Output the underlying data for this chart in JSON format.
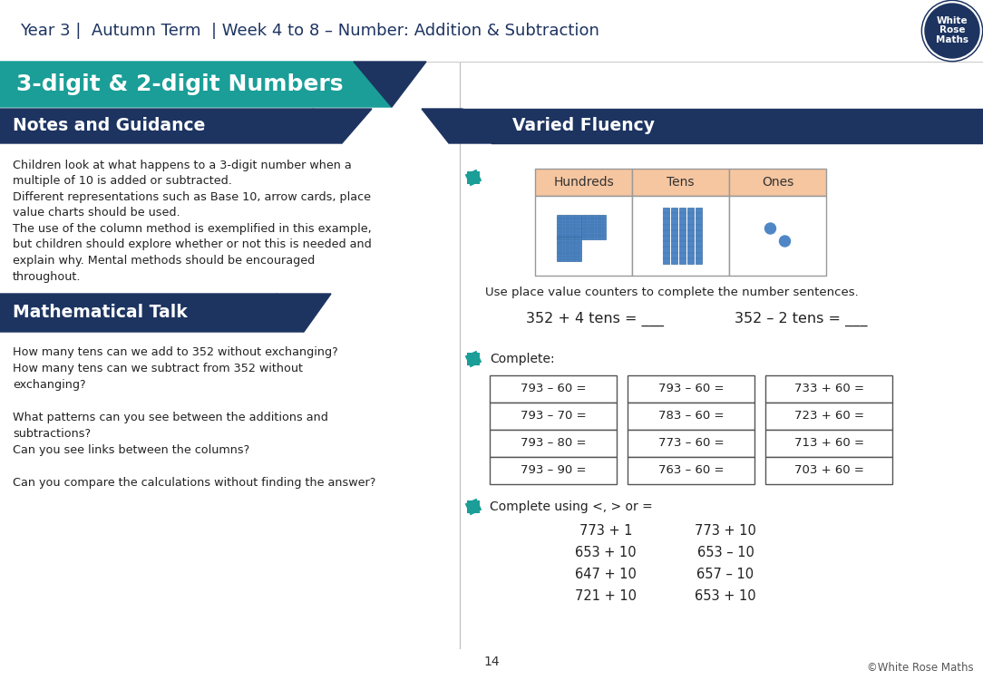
{
  "header_text": "Year 3 |  Autumn Term  | Week 4 to 8 – Number: Addition & Subtraction",
  "teal_color": "#1a9e97",
  "dark_navy": "#1d3461",
  "salmon_color": "#f5c6a0",
  "title_main": "3-digit & 2-digit Numbers",
  "section1_title": "Notes and Guidance",
  "section2_title": "Varied Fluency",
  "section3_title": "Mathematical Talk",
  "notes_text": [
    "Children look at what happens to a 3-digit number when a",
    "multiple of 10 is added or subtracted.",
    "Different representations such as Base 10, arrow cards, place",
    "value charts should be used.",
    "The use of the column method is exemplified in this example,",
    "but children should explore whether or not this is needed and",
    "explain why. Mental methods should be encouraged",
    "throughout."
  ],
  "math_talk_text": [
    "How many tens can we add to 352 without exchanging?",
    "How many tens can we subtract from 352 without",
    "exchanging?",
    "",
    "What patterns can you see between the additions and",
    "subtractions?",
    "Can you see links between the columns?",
    "",
    "Can you compare the calculations without finding the answer?"
  ],
  "place_value_headers": [
    "Hundreds",
    "Tens",
    "Ones"
  ],
  "use_text": "Use place value counters to complete the number sentences.",
  "sentence1": "352 + 4 tens = ___",
  "sentence2": "352 – 2 tens = ___",
  "complete_label": "Complete:",
  "table1": [
    "793 – 60 =",
    "793 – 70 =",
    "793 – 80 =",
    "793 – 90 ="
  ],
  "table2": [
    "793 – 60 =",
    "783 – 60 =",
    "773 – 60 =",
    "763 – 60 ="
  ],
  "table3": [
    "733 + 60 =",
    "723 + 60 =",
    "713 + 60 =",
    "703 + 60 ="
  ],
  "compare_label": "Complete using <, > or =",
  "compare_left": [
    "773 + 1",
    "653 + 10",
    "647 + 10",
    "721 + 10"
  ],
  "compare_right": [
    "773 + 10",
    "653 – 10",
    "657 – 10",
    "653 + 10"
  ],
  "page_number": "14",
  "footer": "©White Rose Maths",
  "blue_block_color": "#4f86c6"
}
